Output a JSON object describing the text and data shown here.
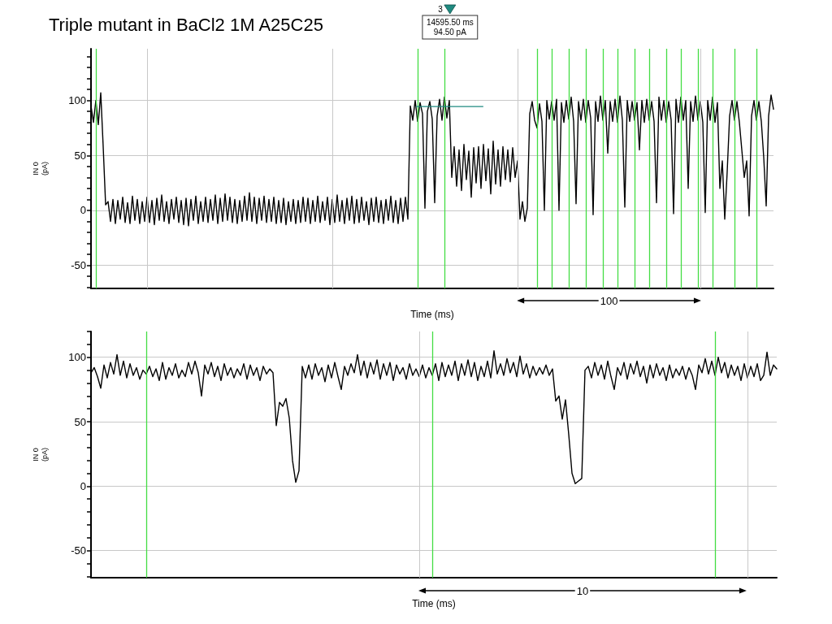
{
  "chart_data": [
    {
      "type": "line",
      "title": "Triple mutant in BaCl2 1M A25C25",
      "xlabel": "Time (ms)",
      "ylabel": "IN 0\n(pA)",
      "color": "#000000",
      "marker": "none",
      "line_style": "solid",
      "grid": "y",
      "tick_labels": "y",
      "ylim": [
        -71,
        147
      ],
      "yticks": [
        {
          "value": -70,
          "label": null
        },
        {
          "value": -60,
          "label": null
        },
        -50,
        {
          "value": -40,
          "label": null
        },
        {
          "value": -30,
          "label": null
        },
        {
          "value": -20,
          "label": null
        },
        {
          "value": -10,
          "label": null
        },
        0,
        {
          "value": 10,
          "label": null
        },
        {
          "value": 20,
          "label": null
        },
        {
          "value": 30,
          "label": null
        },
        {
          "value": 40,
          "label": null
        },
        50,
        {
          "value": 60,
          "label": null
        },
        {
          "value": 70,
          "label": null
        },
        {
          "value": 80,
          "label": null
        },
        {
          "value": 90,
          "label": null
        },
        100,
        {
          "value": 110,
          "label": null
        },
        {
          "value": 120,
          "label": null
        },
        {
          "value": 130,
          "label": null
        },
        {
          "value": 140,
          "label": null
        }
      ],
      "categories": [
        null,
        null,
        null,
        null,
        null,
        null,
        null,
        null,
        null,
        null,
        null,
        null,
        null,
        null,
        null,
        null,
        null,
        null,
        null,
        null,
        null,
        null,
        null,
        null,
        null,
        null,
        null,
        null,
        null,
        null,
        null,
        null,
        null,
        null,
        null,
        null,
        null,
        null,
        null,
        null,
        null,
        null,
        null,
        null,
        null,
        null,
        null,
        null,
        null,
        null,
        null,
        null,
        null,
        null,
        null,
        null,
        null,
        null,
        null,
        null,
        null,
        null,
        null,
        null,
        null,
        null,
        null,
        null,
        null,
        null,
        null,
        null,
        null,
        null,
        null,
        null,
        null,
        null,
        null,
        null,
        null,
        null,
        null,
        null,
        null,
        null,
        null,
        null,
        null,
        null,
        null,
        null,
        null,
        null,
        null,
        null,
        null,
        null,
        null,
        null,
        null,
        null,
        null,
        null,
        null,
        null,
        null,
        null,
        null,
        null,
        null,
        null,
        null,
        null,
        null,
        null,
        null,
        null,
        null,
        null,
        null,
        null,
        null,
        null,
        null,
        null,
        null,
        null,
        null,
        null,
        null,
        null,
        null,
        null,
        null,
        null,
        null,
        null,
        null,
        null,
        null,
        null,
        null,
        null,
        null,
        null,
        null,
        null,
        null,
        null,
        null,
        null,
        null,
        null,
        null,
        null,
        null,
        null,
        null,
        null,
        null,
        null,
        null,
        null,
        null,
        null,
        null,
        null,
        null,
        null,
        null,
        null,
        null,
        null,
        null,
        null,
        null,
        null,
        null,
        null,
        null,
        null,
        null,
        null,
        null,
        null,
        null,
        null,
        null,
        null,
        null,
        null,
        null,
        null,
        null,
        null,
        null,
        null,
        null,
        null,
        null,
        null,
        null,
        null,
        null,
        null,
        null,
        null,
        null,
        null,
        null,
        null,
        null,
        null,
        null,
        null,
        null,
        null,
        null,
        null,
        null,
        null,
        null,
        null,
        null,
        null,
        null,
        null,
        null,
        null,
        null,
        null,
        null,
        null,
        null,
        null,
        null,
        null,
        null,
        null,
        null,
        null,
        null,
        null,
        null,
        null,
        null,
        null,
        null,
        null,
        null,
        null,
        null,
        null,
        null,
        null,
        null,
        null,
        null,
        null,
        null,
        null,
        null,
        null,
        null,
        null,
        null,
        null,
        null,
        null,
        null,
        null,
        null,
        null,
        null,
        null,
        null,
        null,
        null,
        null,
        null
      ],
      "values": [
        95,
        80,
        100,
        78,
        107,
        58,
        5,
        8,
        -10,
        10,
        -12,
        9,
        -8,
        12,
        -11,
        7,
        -12,
        13,
        -9,
        10,
        -12,
        8,
        -10,
        12,
        -11,
        9,
        -13,
        11,
        -9,
        14,
        -10,
        8,
        -12,
        10,
        -8,
        12,
        -11,
        9,
        -13,
        11,
        -14,
        10,
        -9,
        13,
        -12,
        8,
        -10,
        12,
        -11,
        10,
        -9,
        14,
        -12,
        11,
        -10,
        15,
        -9,
        12,
        -11,
        10,
        -12,
        9,
        -10,
        13,
        -9,
        16,
        -10,
        12,
        -12,
        11,
        -9,
        13,
        -11,
        10,
        -10,
        12,
        -12,
        9,
        -11,
        11,
        -13,
        8,
        -10,
        10,
        -12,
        9,
        -11,
        12,
        -10,
        11,
        -12,
        9,
        -10,
        13,
        -11,
        8,
        -9,
        12,
        -13,
        10,
        -11,
        14,
        -10,
        9,
        -12,
        11,
        -9,
        13,
        -12,
        10,
        -11,
        12,
        -9,
        8,
        -13,
        11,
        -10,
        12,
        -11,
        9,
        -12,
        10,
        -9,
        13,
        -11,
        9,
        -12,
        11,
        -10,
        12,
        -8,
        95,
        82,
        100,
        81,
        98,
        88,
        2,
        90,
        99,
        83,
        7,
        86,
        101,
        82,
        103,
        84,
        100,
        30,
        58,
        22,
        55,
        18,
        60,
        28,
        54,
        12,
        57,
        25,
        58,
        20,
        60,
        27,
        56,
        15,
        63,
        24,
        55,
        22,
        58,
        28,
        55,
        26,
        57,
        30,
        45,
        -8,
        8,
        -10,
        2,
        88,
        99,
        82,
        75,
        97,
        81,
        0,
        100,
        83,
        99,
        82,
        101,
        0,
        98,
        80,
        100,
        83,
        103,
        81,
        6,
        99,
        82,
        101,
        80,
        100,
        84,
        -4,
        99,
        81,
        104,
        82,
        100,
        52,
        99,
        81,
        101,
        80,
        104,
        82,
        3,
        100,
        81,
        99,
        82,
        98,
        55,
        100,
        80,
        101,
        82,
        99,
        81,
        7,
        103,
        82,
        100,
        80,
        99,
        82,
        -3,
        101,
        80,
        103,
        82,
        100,
        20,
        99,
        81,
        104,
        82,
        99,
        80,
        -2,
        100,
        82,
        103,
        80,
        98,
        20,
        45,
        -8,
        35,
        86,
        100,
        82,
        99,
        80,
        55,
        30,
        45,
        -5,
        86,
        100,
        82,
        99,
        81,
        48,
        4,
        86,
        105,
        92
      ],
      "annotations": [
        "100",
        "3",
        "14595.50 ms",
        "94.50 pA"
      ]
    },
    {
      "type": "line",
      "xlabel": "Time (ms)",
      "ylabel": "IN 0\n(pA)",
      "color": "#000000",
      "marker": "none",
      "line_style": "solid",
      "grid": "y",
      "tick_labels": "y",
      "ylim": [
        -71,
        120
      ],
      "yticks": [
        {
          "value": -70,
          "label": null
        },
        {
          "value": -60,
          "label": null
        },
        -50,
        {
          "value": -40,
          "label": null
        },
        {
          "value": -30,
          "label": null
        },
        {
          "value": -20,
          "label": null
        },
        {
          "value": -10,
          "label": null
        },
        0,
        {
          "value": 10,
          "label": null
        },
        {
          "value": 20,
          "label": null
        },
        {
          "value": 30,
          "label": null
        },
        {
          "value": 40,
          "label": null
        },
        50,
        {
          "value": 60,
          "label": null
        },
        {
          "value": 70,
          "label": null
        },
        {
          "value": 80,
          "label": null
        },
        {
          "value": 90,
          "label": null
        },
        100,
        {
          "value": 110,
          "label": null
        },
        {
          "value": 120,
          "label": null
        }
      ],
      "categories": [
        null,
        null,
        null,
        null,
        null,
        null,
        null,
        null,
        null,
        null,
        null,
        null,
        null,
        null,
        null,
        null,
        null,
        null,
        null,
        null,
        null,
        null,
        null,
        null,
        null,
        null,
        null,
        null,
        null,
        null,
        null,
        null,
        null,
        null,
        null,
        null,
        null,
        null,
        null,
        null,
        null,
        null,
        null,
        null,
        null,
        null,
        null,
        null,
        null,
        null,
        null,
        null,
        null,
        null,
        null,
        null,
        null,
        null,
        null,
        null,
        null,
        null,
        null,
        null,
        null,
        null,
        null,
        null,
        null,
        null,
        null,
        null,
        null,
        null,
        null,
        null,
        null,
        null,
        null,
        null,
        null,
        null,
        null,
        null,
        null,
        null,
        null,
        null,
        null,
        null,
        null,
        null,
        null,
        null,
        null,
        null,
        null,
        null,
        null,
        null,
        null,
        null,
        null,
        null,
        null,
        null,
        null,
        null,
        null,
        null,
        null,
        null,
        null,
        null,
        null,
        null,
        null,
        null,
        null,
        null,
        null,
        null,
        null,
        null,
        null,
        null,
        null,
        null,
        null,
        null,
        null,
        null,
        null,
        null,
        null,
        null,
        null,
        null,
        null,
        null,
        null,
        null,
        null,
        null,
        null,
        null,
        null,
        null,
        null,
        null,
        null,
        null,
        null,
        null,
        null,
        null,
        null,
        null,
        null,
        null,
        null,
        null,
        null,
        null,
        null,
        null,
        null,
        null,
        null,
        null,
        null,
        null,
        null,
        null,
        null,
        null,
        null,
        null,
        null,
        null,
        null,
        null,
        null,
        null,
        null,
        null,
        null,
        null,
        null,
        null,
        null,
        null,
        null,
        null,
        null,
        null,
        null,
        null,
        null,
        null,
        null,
        null,
        null,
        null,
        null,
        null,
        null,
        null,
        null,
        null,
        null,
        null
      ],
      "values": [
        88,
        92,
        85,
        76,
        94,
        84,
        96,
        87,
        102,
        86,
        97,
        84,
        95,
        86,
        92,
        83,
        90,
        87,
        93,
        85,
        91,
        82,
        96,
        83,
        92,
        86,
        95,
        84,
        90,
        85,
        96,
        87,
        97,
        88,
        70,
        94,
        87,
        96,
        85,
        93,
        82,
        95,
        86,
        92,
        84,
        91,
        86,
        95,
        83,
        94,
        86,
        92,
        82,
        93,
        87,
        91,
        88,
        47,
        65,
        62,
        68,
        53,
        20,
        3,
        12,
        93,
        84,
        94,
        83,
        95,
        86,
        92,
        81,
        94,
        84,
        96,
        85,
        75,
        93,
        86,
        95,
        88,
        102,
        86,
        97,
        84,
        96,
        87,
        98,
        83,
        95,
        86,
        96,
        82,
        94,
        87,
        92,
        83,
        95,
        86,
        91,
        85,
        94,
        84,
        92,
        86,
        95,
        82,
        96,
        85,
        94,
        86,
        97,
        82,
        95,
        86,
        98,
        85,
        96,
        82,
        93,
        85,
        97,
        84,
        105,
        87,
        95,
        86,
        99,
        88,
        96,
        85,
        101,
        87,
        95,
        84,
        93,
        86,
        92,
        87,
        94,
        86,
        91,
        66,
        70,
        52,
        67,
        40,
        10,
        2,
        4,
        6,
        90,
        93,
        84,
        96,
        86,
        94,
        83,
        97,
        85,
        75,
        92,
        86,
        96,
        83,
        95,
        87,
        97,
        85,
        93,
        80,
        94,
        84,
        95,
        86,
        92,
        82,
        94,
        84,
        91,
        86,
        93,
        83,
        92,
        86,
        75,
        94,
        88,
        99,
        87,
        97,
        86,
        100,
        88,
        96,
        84,
        94,
        86,
        93,
        82,
        95,
        84,
        93,
        85,
        95,
        82,
        86,
        104,
        86,
        94,
        91
      ],
      "annotations": [
        "10"
      ]
    }
  ]
}
